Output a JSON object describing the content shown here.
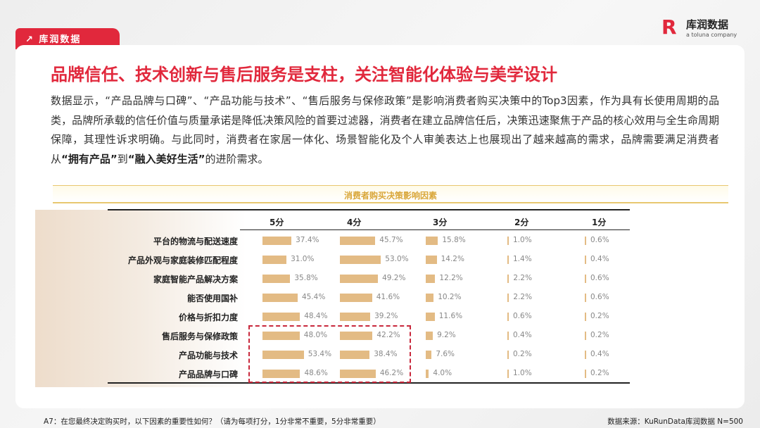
{
  "brand": {
    "tag": "库润数据",
    "logo_name": "库润数据",
    "logo_sub": "a toluna company",
    "accent": "#e1283c"
  },
  "title": "品牌信任、技术创新与售后服务是支柱，关注智能化体验与美学设计",
  "paragraph": {
    "p1": "数据显示，“产品品牌与口碑”、“产品功能与技术”、“售后服务与保修政策”是影响消费者购买决策中的Top3因素，作为具有长使用周期的品类，品牌所承载的信任价值与质量承诺是降低决策风险的首要过滤器，消费者在建立品牌信任后，决策迅速聚焦于产品的核心效用与全生命周期保障，其理性诉求明确。与此同时，消费者在家居一体化、场景智能化及个人审美表达上也展现出了越来越高的需求，品牌需要满足消费者从",
    "b1": "“拥有产品”",
    "p2": "到",
    "b2": "“融入美好生活”",
    "p3": "的进阶需求。"
  },
  "chart_data": {
    "type": "bar",
    "title": "消费者购买决策影响因素",
    "bar_color": "#e3bb84",
    "columns": [
      "5分",
      "4分",
      "3分",
      "2分",
      "1分"
    ],
    "categories": [
      "平台的物流与配送速度",
      "产品外观与家庭装修匹配程度",
      "家庭智能产品解决方案",
      "能否使用国补",
      "价格与折扣力度",
      "售后服务与保修政策",
      "产品功能与技术",
      "产品品牌与口碑"
    ],
    "series": [
      {
        "name": "5分",
        "values": [
          37.4,
          31.0,
          35.8,
          45.4,
          48.4,
          48.0,
          53.4,
          48.6
        ]
      },
      {
        "name": "4分",
        "values": [
          45.7,
          53.0,
          49.2,
          41.6,
          39.2,
          42.2,
          38.4,
          46.2
        ]
      },
      {
        "name": "3分",
        "values": [
          15.8,
          14.2,
          12.2,
          10.2,
          11.6,
          9.2,
          7.6,
          4.0
        ]
      },
      {
        "name": "2分",
        "values": [
          1.0,
          1.4,
          2.2,
          2.2,
          0.6,
          0.4,
          0.2,
          1.0
        ]
      },
      {
        "name": "1分",
        "values": [
          0.6,
          0.4,
          0.6,
          0.6,
          0.2,
          0.2,
          0.4,
          0.2
        ]
      }
    ],
    "highlighted_categories": [
      "售后服务与保修政策",
      "产品功能与技术",
      "产品品牌与口碑"
    ],
    "highlighted_columns": [
      "5分",
      "4分"
    ]
  },
  "footer": {
    "question": "A7：在您最终决定购买时，以下因素的重要性如何？（请为每项打分，1分非常不重要，5分非常重要）",
    "source": "数据来源：KuRunData库润数据 N=500"
  }
}
